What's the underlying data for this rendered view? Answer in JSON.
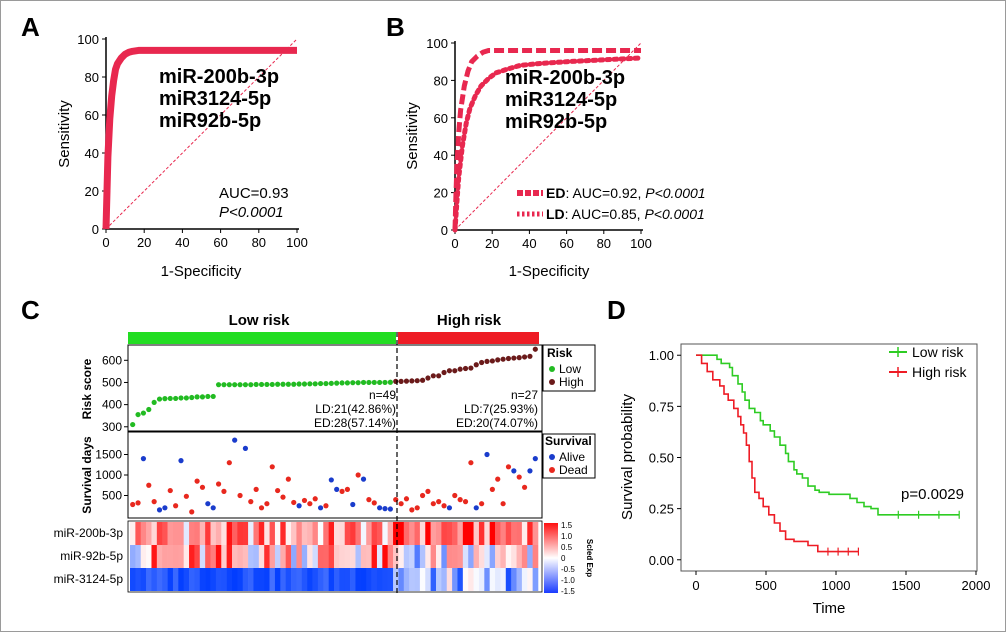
{
  "panels": {
    "A": {
      "label": "A",
      "chart_data": {
        "type": "line",
        "xlabel": "1-Specificity",
        "ylabel": "Sensitivity",
        "xlim": [
          0,
          100
        ],
        "ylim": [
          0,
          100
        ],
        "xticks": [
          "0",
          "20",
          "40",
          "60",
          "80",
          "100"
        ],
        "yticks": [
          "0",
          "20",
          "40",
          "60",
          "80",
          "100"
        ],
        "annotations": [
          "miR-200b-3p",
          "miR3124-5p",
          "miR92b-5p"
        ],
        "auc_text": "AUC=0.93",
        "p_text": "P<0.0001",
        "series": [
          {
            "style": "solid",
            "color": "#e8284f",
            "x": [
              0,
              0.5,
              1,
              2,
              3,
              4,
              5,
              6,
              8,
              10,
              12,
              14,
              17,
              20,
              30,
              50,
              100
            ],
            "y": [
              0,
              20,
              38,
              58,
              70,
              78,
              84,
              87,
              90,
              92,
              93,
              93.5,
              94,
              94,
              94,
              94,
              94
            ]
          }
        ]
      }
    },
    "B": {
      "label": "B",
      "chart_data": {
        "type": "line",
        "xlabel": "1-Specificity",
        "ylabel": "Sensitivity",
        "xlim": [
          0,
          100
        ],
        "ylim": [
          0,
          100
        ],
        "xticks": [
          "0",
          "20",
          "40",
          "60",
          "80",
          "100"
        ],
        "yticks": [
          "0",
          "20",
          "40",
          "60",
          "80",
          "100"
        ],
        "annotations": [
          "miR-200b-3p",
          "miR3124-5p",
          "miR92b-5p"
        ],
        "series": [
          {
            "name": "ED",
            "legend_rest": ": AUC=0.92, ",
            "legend_p": "P<0.0001",
            "style": "dashed",
            "color": "#e8284f",
            "x": [
              0,
              0.5,
              1,
              2,
              3,
              5,
              7,
              9,
              12,
              15,
              18,
              22,
              30,
              50,
              100
            ],
            "y": [
              0,
              18,
              34,
              52,
              64,
              77,
              85,
              90,
              93,
              95,
              96,
              96,
              96,
              96,
              96
            ]
          },
          {
            "name": "LD",
            "legend_rest": ": AUC=0.85, ",
            "legend_p": "P<0.0001",
            "style": "dotted",
            "color": "#e8284f",
            "x": [
              0,
              1,
              2,
              4,
              6,
              8,
              11,
              14,
              18,
              22,
              28,
              35,
              45,
              60,
              80,
              100
            ],
            "y": [
              0,
              15,
              28,
              45,
              57,
              65,
              72,
              77,
              81,
              84,
              86,
              88,
              89,
              90,
              91,
              92
            ]
          }
        ]
      }
    },
    "C": {
      "label": "C",
      "risk_bar": {
        "low_label": "Low risk",
        "high_label": "High risk",
        "low_color": "#22dd22",
        "high_color": "#ee1c25"
      },
      "chart_data": {
        "type": "scatter",
        "risk_ylabel": "Risk score",
        "risk_yticks": [
          "300",
          "400",
          "500",
          "600"
        ],
        "risk_ylim": [
          290,
          660
        ],
        "risk_legend_title": "Risk",
        "risk_legend_items": [
          "Low",
          "High"
        ],
        "low_count": 49,
        "high_count": 27,
        "low_stats": [
          "n=49",
          "LD:21(42.86%)",
          "ED:28(57.14%)"
        ],
        "high_stats": [
          "n=27",
          "LD:7(25.93%)",
          "ED:20(74.07%)"
        ],
        "low_risk_scores": [
          310,
          355,
          362,
          378,
          410,
          425,
          427,
          428,
          428,
          430,
          430,
          432,
          435,
          435,
          437,
          437,
          490,
          490,
          490,
          490,
          490,
          490,
          490,
          491,
          491,
          491,
          491,
          492,
          492,
          492,
          492,
          493,
          493,
          494,
          494,
          495,
          495,
          496,
          497,
          498,
          498,
          499,
          499,
          500,
          500,
          500,
          500,
          500,
          501
        ],
        "high_risk_scores": [
          505,
          505,
          506,
          507,
          508,
          510,
          520,
          530,
          530,
          545,
          553,
          553,
          560,
          563,
          565,
          580,
          590,
          595,
          597,
          602,
          605,
          608,
          610,
          612,
          615,
          618,
          650
        ],
        "survival_ylabel": "Survival days",
        "survival_yticks": [
          "500",
          "1000",
          "1500"
        ],
        "survival_ylim": [
          0,
          2000
        ],
        "survival_legend_title": "Survival",
        "survival_legend_items": [
          "Alive",
          "Dead"
        ],
        "survival_low": [
          [
            280,
            "D"
          ],
          [
            320,
            "D"
          ],
          [
            1400,
            "A"
          ],
          [
            750,
            "D"
          ],
          [
            350,
            "D"
          ],
          [
            150,
            "A"
          ],
          [
            200,
            "A"
          ],
          [
            620,
            "D"
          ],
          [
            250,
            "D"
          ],
          [
            1350,
            "A"
          ],
          [
            480,
            "D"
          ],
          [
            100,
            "D"
          ],
          [
            850,
            "D"
          ],
          [
            700,
            "D"
          ],
          [
            300,
            "A"
          ],
          [
            200,
            "A"
          ],
          [
            780,
            "D"
          ],
          [
            600,
            "D"
          ],
          [
            1300,
            "D"
          ],
          [
            1850,
            "A"
          ],
          [
            500,
            "D"
          ],
          [
            1650,
            "A"
          ],
          [
            350,
            "D"
          ],
          [
            650,
            "D"
          ],
          [
            200,
            "D"
          ],
          [
            300,
            "D"
          ],
          [
            1200,
            "D"
          ],
          [
            620,
            "D"
          ],
          [
            460,
            "D"
          ],
          [
            900,
            "D"
          ],
          [
            330,
            "D"
          ],
          [
            250,
            "A"
          ],
          [
            380,
            "D"
          ],
          [
            300,
            "D"
          ],
          [
            420,
            "D"
          ],
          [
            200,
            "A"
          ],
          [
            250,
            "D"
          ],
          [
            880,
            "A"
          ],
          [
            650,
            "A"
          ],
          [
            600,
            "D"
          ],
          [
            650,
            "D"
          ],
          [
            280,
            "A"
          ],
          [
            1000,
            "D"
          ],
          [
            900,
            "A"
          ],
          [
            400,
            "D"
          ],
          [
            320,
            "D"
          ],
          [
            200,
            "A"
          ],
          [
            180,
            "A"
          ],
          [
            170,
            "A"
          ]
        ],
        "survival_high": [
          [
            400,
            "D"
          ],
          [
            300,
            "D"
          ],
          [
            420,
            "D"
          ],
          [
            150,
            "D"
          ],
          [
            200,
            "D"
          ],
          [
            500,
            "D"
          ],
          [
            600,
            "D"
          ],
          [
            300,
            "D"
          ],
          [
            350,
            "D"
          ],
          [
            250,
            "D"
          ],
          [
            200,
            "A"
          ],
          [
            500,
            "D"
          ],
          [
            400,
            "D"
          ],
          [
            350,
            "D"
          ],
          [
            1300,
            "D"
          ],
          [
            200,
            "A"
          ],
          [
            300,
            "D"
          ],
          [
            1500,
            "A"
          ],
          [
            650,
            "D"
          ],
          [
            900,
            "D"
          ],
          [
            300,
            "D"
          ],
          [
            1200,
            "D"
          ],
          [
            1100,
            "A"
          ],
          [
            950,
            "D"
          ],
          [
            700,
            "D"
          ],
          [
            1100,
            "A"
          ],
          [
            1400,
            "A"
          ]
        ],
        "heatmap_rows": [
          "miR-200b-3p",
          "miR-92b-5p",
          "miR-3124-5p"
        ],
        "colorbar_ticks": [
          "1.5",
          "1.0",
          "0.5",
          "0",
          "-0.5",
          "-1.0",
          "-1.5"
        ],
        "colorbar_title": "Scled Exp"
      }
    },
    "D": {
      "label": "D",
      "chart_data": {
        "type": "line",
        "xlabel": "Time",
        "ylabel": "Survival probability",
        "xlim": [
          -100,
          2000
        ],
        "ylim": [
          -0.05,
          1.05
        ],
        "xticks": [
          "0",
          "500",
          "1000",
          "1500",
          "2000"
        ],
        "yticks": [
          "0.00",
          "0.25",
          "0.50",
          "0.75",
          "1.00"
        ],
        "annotation": "p=0.0029",
        "series": [
          {
            "name": "Low risk",
            "color": "#2ecc23",
            "x": [
              0,
              90,
              150,
              180,
              240,
              260,
              300,
              330,
              350,
              380,
              420,
              460,
              480,
              530,
              560,
              600,
              640,
              660,
              700,
              720,
              760,
              800,
              850,
              880,
              950,
              1030,
              1100,
              1150,
              1200,
              1250,
              1300,
              1880
            ],
            "y": [
              1.0,
              1.0,
              0.98,
              0.96,
              0.94,
              0.9,
              0.86,
              0.82,
              0.78,
              0.74,
              0.72,
              0.68,
              0.66,
              0.63,
              0.6,
              0.56,
              0.52,
              0.48,
              0.44,
              0.42,
              0.4,
              0.36,
              0.34,
              0.33,
              0.32,
              0.32,
              0.3,
              0.28,
              0.26,
              0.25,
              0.22,
              0.22
            ]
          },
          {
            "name": "High risk",
            "color": "#ee1c25",
            "x": [
              0,
              40,
              80,
              120,
              170,
              200,
              230,
              270,
              300,
              320,
              340,
              360,
              380,
              400,
              420,
              450,
              480,
              520,
              560,
              600,
              640,
              700,
              800,
              870,
              1160
            ],
            "y": [
              1.0,
              0.96,
              0.92,
              0.88,
              0.85,
              0.81,
              0.78,
              0.74,
              0.7,
              0.66,
              0.62,
              0.56,
              0.48,
              0.4,
              0.33,
              0.3,
              0.26,
              0.22,
              0.18,
              0.14,
              0.1,
              0.09,
              0.07,
              0.04,
              0.04
            ]
          }
        ]
      }
    }
  }
}
